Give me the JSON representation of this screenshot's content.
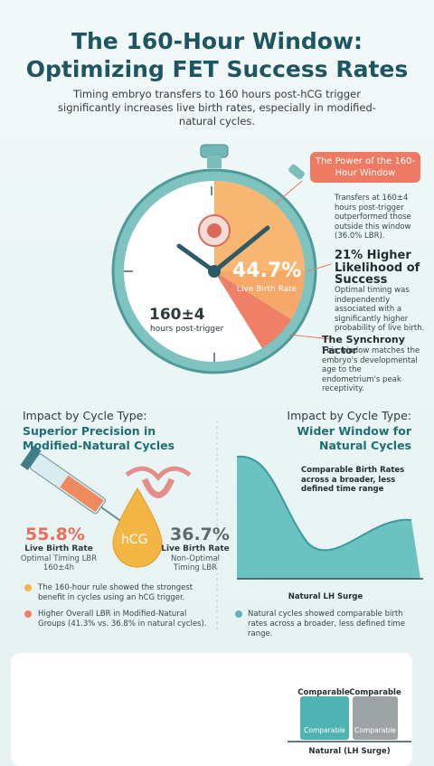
{
  "header": {
    "title_line1": "The 160-Hour Window:",
    "title_line2": "Optimizing FET Success Rates",
    "subtitle": "Timing embryo transfers to 160 hours post-hCG trigger significantly increases live birth rates, especially in modified-natural cycles."
  },
  "stopwatch": {
    "rate": "44.7%",
    "rate_label": "Live Birth Rate",
    "hours": "160±4",
    "hours_label": "hours post-trigger"
  },
  "callouts": {
    "badge": "The Power of the 160-Hour Window",
    "note1": "Transfers at 160±4 hours post-trigger outperformed those outside this window (36.0% LBR).",
    "heading2": "21% Higher Likelihood of Success",
    "note2": "Optimal timing was independently associated with a significantly higher probability of live birth.",
    "heading3": "The Synchrony Factor",
    "note3": "This window matches the embryo's developmental age to the endometrium's peak receptivity."
  },
  "left": {
    "label": "Impact by Cycle Type:",
    "title": "Superior Precision in Modified-Natural Cycles",
    "drop": "hCG",
    "optimal": {
      "value": "55.8%",
      "label": "Live Birth Rate",
      "note": "Optimal Timing LBR 160±4h"
    },
    "nonoptimal": {
      "value": "36.7%",
      "label": "Live Birth Rate",
      "note": "Non-Optimal Timing LBR"
    },
    "bullets": [
      "The 160-hour rule showed the strongest benefit in cycles using an hCG trigger.",
      "Higher Overall LBR in Modified-Natural Groups (41.3% vs. 36.8% in natural cycles)."
    ]
  },
  "right": {
    "label": "Impact by Cycle Type:",
    "title": "Wider Window for Natural Cycles",
    "graph_note": "Comparable Birth Rates across a broader, less defined time range",
    "axis_label": "Natural LH Surge",
    "bullets": [
      "Natural cycles showed comparable birth rates across a broader, less defined time range."
    ]
  },
  "footer_chart": {
    "bars": [
      {
        "top_label": "Comparable",
        "label": "Comparable"
      },
      {
        "top_label": "Comparable",
        "label": "Comparable"
      }
    ],
    "axis_label": "Natural (LH Surge)"
  }
}
